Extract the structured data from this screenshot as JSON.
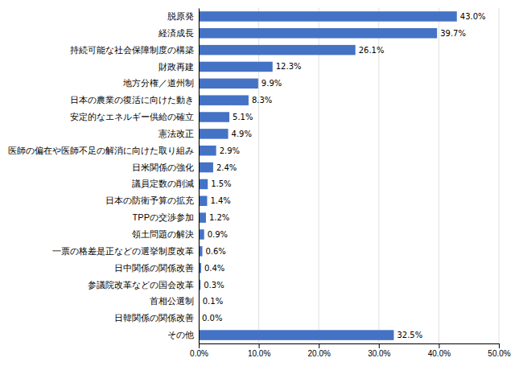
{
  "chart_data": {
    "type": "bar",
    "orientation": "horizontal",
    "categories": [
      "脱原発",
      "経済成長",
      "持続可能な社会保障制度の構築",
      "財政再建",
      "地方分権／道州制",
      "日本の農業の復活に向けた動き",
      "安定的なエネルギー供給の確立",
      "憲法改正",
      "医師の偏在や医師不足の解消に向けた取り組み",
      "日米関係の強化",
      "議員定数の削減",
      "日本の防衛予算の拡充",
      "TPPの交渉参加",
      "領土問題の解決",
      "一票の格差是正などの選挙制度改革",
      "日中関係の関係改善",
      "参議院改革などの国会改革",
      "首相公選制",
      "日韓関係の関係改善",
      "その他"
    ],
    "values": [
      43.0,
      39.7,
      26.1,
      12.3,
      9.9,
      8.3,
      5.1,
      4.9,
      2.9,
      2.4,
      1.5,
      1.4,
      1.2,
      0.9,
      0.6,
      0.4,
      0.3,
      0.1,
      0.0,
      32.5
    ],
    "value_labels": [
      "43.0%",
      "39.7%",
      "26.1%",
      "12.3%",
      "9.9%",
      "8.3%",
      "5.1%",
      "4.9%",
      "2.9%",
      "2.4%",
      "1.5%",
      "1.4%",
      "1.2%",
      "0.9%",
      "0.6%",
      "0.4%",
      "0.3%",
      "0.1%",
      "0.0%",
      "32.5%"
    ],
    "data_labels": true,
    "color": "#4472c4",
    "xlim": [
      0,
      50
    ],
    "xticks": [
      {
        "value": 0,
        "label": "0.0%"
      },
      {
        "value": 10,
        "label": "10.0%"
      },
      {
        "value": 20,
        "label": "20.0%"
      },
      {
        "value": 30,
        "label": "30.0%"
      },
      {
        "value": 40,
        "label": "40.0%"
      },
      {
        "value": 50,
        "label": "50.0%"
      }
    ],
    "grid": true
  }
}
